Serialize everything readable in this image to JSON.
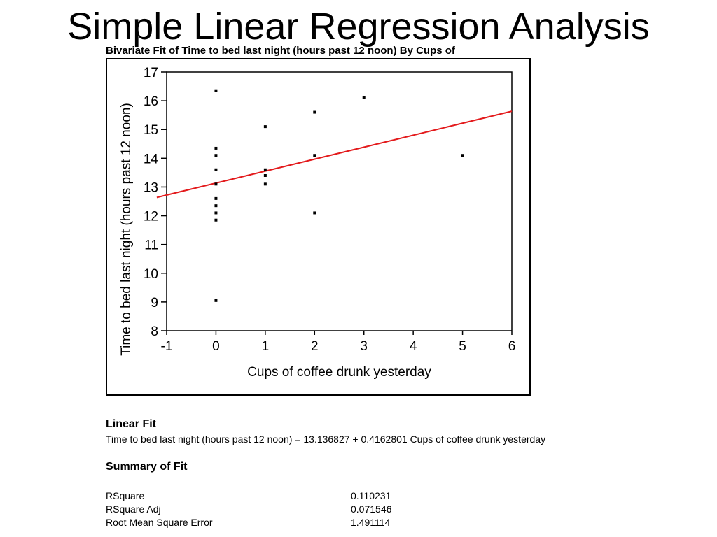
{
  "slide_title": "Simple Linear Regression Analysis",
  "panel_heading": "Bivariate Fit of Time to bed last night (hours past 12 noon) By Cups of",
  "linear_fit": {
    "title": "Linear Fit",
    "equation": "Time to bed last night (hours past 12 noon) = 13.136827 + 0.4162801 Cups of coffee drunk yesterday"
  },
  "summary_of_fit": {
    "title": "Summary of Fit",
    "rows": [
      {
        "label": "RSquare",
        "value": "0.110231"
      },
      {
        "label": "RSquare Adj",
        "value": "0.071546"
      },
      {
        "label": "Root Mean Square Error",
        "value": "1.491114"
      }
    ]
  },
  "colors": {
    "fit_line": "#e31a1c",
    "points": "#000000"
  },
  "chart_data": {
    "type": "scatter",
    "xlabel": "Cups of coffee drunk yesterday",
    "ylabel": "Time to bed last night (hours past 12 noon)",
    "xlim": [
      -1,
      6
    ],
    "ylim": [
      8,
      17
    ],
    "xticks": [
      -1,
      0,
      1,
      2,
      3,
      4,
      5,
      6
    ],
    "yticks": [
      8,
      9,
      10,
      11,
      12,
      13,
      14,
      15,
      16,
      17
    ],
    "grid": false,
    "points": [
      {
        "x": 0,
        "y": 16.35
      },
      {
        "x": 0,
        "y": 14.35
      },
      {
        "x": 0,
        "y": 14.1
      },
      {
        "x": 0,
        "y": 13.6
      },
      {
        "x": 0,
        "y": 13.1
      },
      {
        "x": 0,
        "y": 12.6
      },
      {
        "x": 0,
        "y": 12.35
      },
      {
        "x": 0,
        "y": 12.1
      },
      {
        "x": 0,
        "y": 11.85
      },
      {
        "x": 0,
        "y": 9.05
      },
      {
        "x": 1,
        "y": 15.1
      },
      {
        "x": 1,
        "y": 13.6
      },
      {
        "x": 1,
        "y": 13.4
      },
      {
        "x": 1,
        "y": 13.1
      },
      {
        "x": 2,
        "y": 15.6
      },
      {
        "x": 2,
        "y": 14.1
      },
      {
        "x": 2,
        "y": 12.1
      },
      {
        "x": 3,
        "y": 16.1
      },
      {
        "x": 5,
        "y": 14.1
      }
    ],
    "fit": {
      "intercept": 13.136827,
      "slope": 0.4162801
    }
  }
}
